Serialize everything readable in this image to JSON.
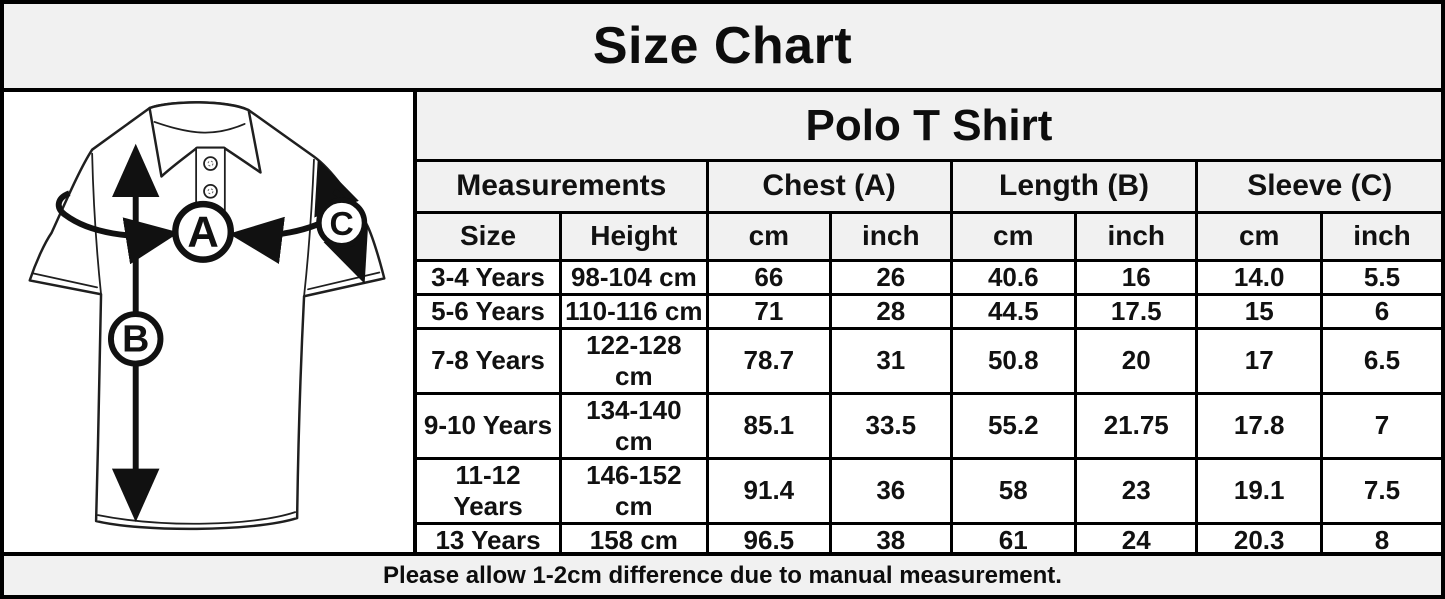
{
  "title": "Size Chart",
  "product_title": "Polo T Shirt",
  "diagram": {
    "label_a": "A",
    "label_b": "B",
    "label_c": "C"
  },
  "table": {
    "group_headers": [
      {
        "label": "Measurements"
      },
      {
        "label": "Chest (A)"
      },
      {
        "label": "Length (B)"
      },
      {
        "label": "Sleeve (C)"
      }
    ],
    "sub_headers": [
      "Size",
      "Height",
      "cm",
      "inch",
      "cm",
      "inch",
      "cm",
      "inch"
    ],
    "rows": [
      [
        "3-4 Years",
        "98-104 cm",
        "66",
        "26",
        "40.6",
        "16",
        "14.0",
        "5.5"
      ],
      [
        "5-6 Years",
        "110-116 cm",
        "71",
        "28",
        "44.5",
        "17.5",
        "15",
        "6"
      ],
      [
        "7-8 Years",
        "122-128 cm",
        "78.7",
        "31",
        "50.8",
        "20",
        "17",
        "6.5"
      ],
      [
        "9-10 Years",
        "134-140 cm",
        "85.1",
        "33.5",
        "55.2",
        "21.75",
        "17.8",
        "7"
      ],
      [
        "11-12 Years",
        "146-152 cm",
        "91.4",
        "36",
        "58",
        "23",
        "19.1",
        "7.5"
      ],
      [
        "13 Years",
        "158 cm",
        "96.5",
        "38",
        "61",
        "24",
        "20.3",
        "8"
      ]
    ]
  },
  "footer_note": "Please allow 1-2cm difference due to manual measurement.",
  "colors": {
    "panel_gray": "#f1f1f1",
    "cell_white": "#ffffff",
    "border_black": "#000000",
    "text_black": "#111111"
  }
}
